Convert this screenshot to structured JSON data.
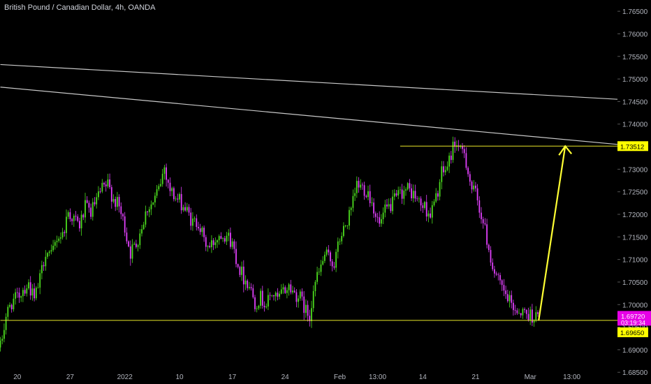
{
  "header": {
    "symbol_title": "British Pound / Canadian Dollar, 4h, OANDA"
  },
  "colors": {
    "background": "#000000",
    "bull": "#4cdc1e",
    "bear": "#e040fb",
    "trendline": "#c9c9c9",
    "level": "#e7e629",
    "arrow": "#ffff33",
    "axis_text": "#b2b5be",
    "price_tag_bg": "#e600e6",
    "level_tag_bg": "#ffff00"
  },
  "chart_data": {
    "type": "candlestick",
    "symbol": "GBPCAD",
    "timeframe": "4h",
    "source": "OANDA",
    "ylim": [
      1.6855,
      1.7675
    ],
    "y_ticks": [
      "1.68500",
      "1.69000",
      "1.69500",
      "1.70000",
      "1.70500",
      "1.71000",
      "1.71500",
      "1.72000",
      "1.72500",
      "1.73000",
      "1.73500",
      "1.74000",
      "1.74500",
      "1.75000",
      "1.75500",
      "1.76000",
      "1.76500"
    ],
    "x_ticks": [
      "20",
      "27",
      "2022",
      "10",
      "17",
      "24",
      "Feb",
      "13:00",
      "14",
      "21",
      "Mar",
      "13:00"
    ],
    "x_tick_index": [
      9,
      37,
      66,
      95,
      123,
      151,
      180,
      200,
      224,
      252,
      281,
      303
    ],
    "candle_count": 286,
    "close_path": [
      [
        0,
        1.6905
      ],
      [
        3,
        1.6975
      ],
      [
        6,
        1.7005
      ],
      [
        9,
        1.7015
      ],
      [
        12,
        1.7035
      ],
      [
        15,
        1.7045
      ],
      [
        18,
        1.701
      ],
      [
        21,
        1.7055
      ],
      [
        24,
        1.712
      ],
      [
        27,
        1.7105
      ],
      [
        30,
        1.715
      ],
      [
        33,
        1.7155
      ],
      [
        36,
        1.7205
      ],
      [
        39,
        1.719
      ],
      [
        42,
        1.7175
      ],
      [
        45,
        1.7215
      ],
      [
        48,
        1.7205
      ],
      [
        51,
        1.723
      ],
      [
        54,
        1.7255
      ],
      [
        57,
        1.7265
      ],
      [
        60,
        1.7235
      ],
      [
        63,
        1.7215
      ],
      [
        66,
        1.717
      ],
      [
        69,
        1.7115
      ],
      [
        72,
        1.7135
      ],
      [
        75,
        1.7175
      ],
      [
        78,
        1.7215
      ],
      [
        81,
        1.7225
      ],
      [
        84,
        1.7255
      ],
      [
        87,
        1.7305
      ],
      [
        90,
        1.7255
      ],
      [
        93,
        1.7235
      ],
      [
        96,
        1.7225
      ],
      [
        99,
        1.7205
      ],
      [
        102,
        1.718
      ],
      [
        105,
        1.7185
      ],
      [
        108,
        1.714
      ],
      [
        111,
        1.7125
      ],
      [
        114,
        1.7145
      ],
      [
        117,
        1.716
      ],
      [
        120,
        1.7155
      ],
      [
        123,
        1.7135
      ],
      [
        126,
        1.709
      ],
      [
        129,
        1.706
      ],
      [
        132,
        1.7045
      ],
      [
        135,
        1.7005
      ],
      [
        138,
        1.7015
      ],
      [
        141,
        1.7
      ],
      [
        144,
        1.7025
      ],
      [
        147,
        1.701
      ],
      [
        150,
        1.703
      ],
      [
        153,
        1.704
      ],
      [
        156,
        1.7025
      ],
      [
        159,
        1.7015
      ],
      [
        162,
        1.6985
      ],
      [
        164,
        1.6975
      ],
      [
        166,
        1.704
      ],
      [
        169,
        1.707
      ],
      [
        172,
        1.711
      ],
      [
        175,
        1.71
      ],
      [
        177,
        1.709
      ],
      [
        180,
        1.7145
      ],
      [
        183,
        1.7175
      ],
      [
        186,
        1.7205
      ],
      [
        189,
        1.7265
      ],
      [
        192,
        1.726
      ],
      [
        195,
        1.725
      ],
      [
        198,
        1.7215
      ],
      [
        201,
        1.7175
      ],
      [
        204,
        1.7205
      ],
      [
        207,
        1.722
      ],
      [
        210,
        1.7235
      ],
      [
        213,
        1.725
      ],
      [
        216,
        1.7255
      ],
      [
        219,
        1.7245
      ],
      [
        222,
        1.7225
      ],
      [
        225,
        1.7215
      ],
      [
        228,
        1.72
      ],
      [
        231,
        1.7235
      ],
      [
        234,
        1.729
      ],
      [
        237,
        1.7305
      ],
      [
        240,
        1.735
      ],
      [
        242,
        1.736
      ],
      [
        244,
        1.7335
      ],
      [
        246,
        1.734
      ],
      [
        248,
        1.7295
      ],
      [
        250,
        1.7255
      ],
      [
        252,
        1.7245
      ],
      [
        255,
        1.72
      ],
      [
        258,
        1.7145
      ],
      [
        261,
        1.7085
      ],
      [
        264,
        1.705
      ],
      [
        267,
        1.7025
      ],
      [
        270,
        1.7005
      ],
      [
        273,
        1.699
      ],
      [
        276,
        1.6985
      ],
      [
        279,
        1.698
      ],
      [
        285,
        1.6972
      ]
    ],
    "trendlines": [
      {
        "name": "upper",
        "from": [
          0,
          1.7532
        ],
        "to": [
          285,
          1.7455
        ]
      },
      {
        "name": "lower",
        "from": [
          0,
          1.7482
        ],
        "to": [
          285,
          1.7355
        ]
      }
    ],
    "horizontal_levels": [
      {
        "name": "resistance",
        "price": 1.73512,
        "from_index": 212
      },
      {
        "name": "support",
        "price": 1.6965,
        "from_index": 0
      }
    ],
    "projection_arrow": {
      "from": [
        251,
        1.6965
      ],
      "to": [
        265,
        1.73512
      ]
    },
    "price_tags": [
      {
        "name": "level-1",
        "value": "1.73512",
        "price": 1.73512,
        "kind": "level"
      },
      {
        "name": "last-price",
        "value": "1.69720",
        "price": 1.6972,
        "kind": "last",
        "countdown": "03:19:34"
      },
      {
        "name": "level-2",
        "value": "1.69650",
        "price": 1.6965,
        "kind": "level"
      }
    ]
  }
}
